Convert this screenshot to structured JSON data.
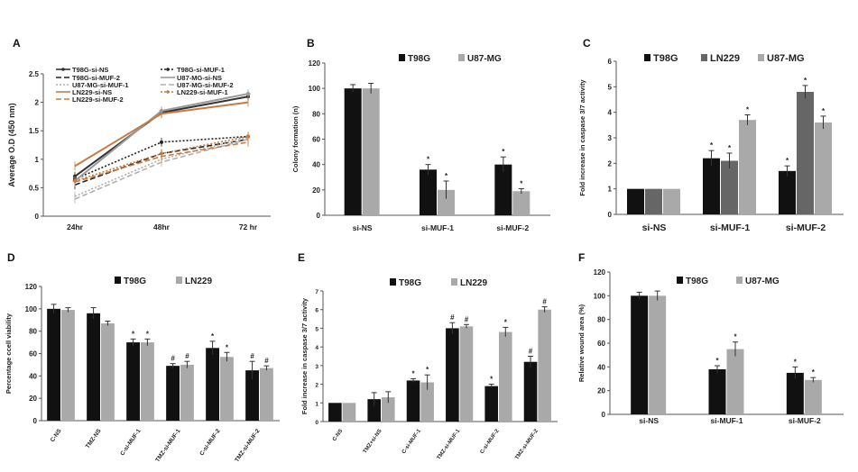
{
  "colors": {
    "black": "#111111",
    "gray": "#777777",
    "lightgray": "#a9a9a9",
    "orange": "#c97a3e",
    "darkgray": "#5a5a5a",
    "lightline": "#bdbdbd"
  },
  "chart_data": [
    {
      "panel": "A",
      "type": "line",
      "ylabel": "Average O.D (450 nm)",
      "x": [
        "24hr",
        "48hr",
        "72 hr"
      ],
      "ylim": [
        0,
        2.5
      ],
      "yticks": [
        "0",
        "0.5",
        "1",
        "1.5",
        "2",
        "2.5"
      ],
      "series": [
        {
          "name": "T98G-si-NS",
          "values": [
            0.7,
            1.82,
            2.1
          ],
          "color": "#333333",
          "dash": "",
          "marker": "circle"
        },
        {
          "name": "T98G-si-MUF-1",
          "values": [
            0.65,
            1.3,
            1.4
          ],
          "color": "#222222",
          "dash": "2,2",
          "marker": "circle"
        },
        {
          "name": "T98G-si-MUF-2",
          "values": [
            0.55,
            1.1,
            1.35
          ],
          "color": "#222222",
          "dash": "6,3",
          "marker": "none"
        },
        {
          "name": "U87-MG-si-NS",
          "values": [
            0.62,
            1.85,
            2.15
          ],
          "color": "#9a9a9a",
          "dash": "",
          "marker": "diamond"
        },
        {
          "name": "U87-MG-si-MUF-1",
          "values": [
            0.35,
            1.0,
            1.38
          ],
          "color": "#b0b0b0",
          "dash": "2,2",
          "marker": "none"
        },
        {
          "name": "U87-MG-si-MUF-2",
          "values": [
            0.3,
            0.95,
            1.35
          ],
          "color": "#b0b0b0",
          "dash": "6,3",
          "marker": "none"
        },
        {
          "name": "LN229-si-NS",
          "values": [
            0.88,
            1.8,
            2.0
          ],
          "color": "#c97a3e",
          "dash": "",
          "marker": "none"
        },
        {
          "name": "LN229-si-MUF-1",
          "values": [
            0.62,
            1.1,
            1.4
          ],
          "color": "#c97a3e",
          "dash": "2,2",
          "marker": "circle"
        },
        {
          "name": "LN229-si-MUF-2",
          "values": [
            0.6,
            1.05,
            1.3
          ],
          "color": "#c97a3e",
          "dash": "6,3",
          "marker": "none"
        }
      ]
    },
    {
      "panel": "B",
      "type": "bar",
      "ylabel": "Colony formation (n)",
      "categories": [
        "si-NS",
        "si-MUF-1",
        "si-MUF-2"
      ],
      "ylim": [
        0,
        120
      ],
      "yticks": [
        "0",
        "20",
        "40",
        "60",
        "80",
        "100",
        "120"
      ],
      "series": [
        {
          "name": "T98G",
          "color": "#111111",
          "values": [
            100,
            36,
            40
          ],
          "err": [
            3,
            4,
            6
          ],
          "marks": [
            "",
            "*",
            "*"
          ]
        },
        {
          "name": "U87-MG",
          "color": "#a9a9a9",
          "values": [
            100,
            20,
            19
          ],
          "err": [
            4,
            7,
            2
          ],
          "marks": [
            "",
            "*",
            "*"
          ]
        }
      ]
    },
    {
      "panel": "C",
      "type": "bar",
      "ylabel": "Fold increase in caspase 3/7 activity",
      "categories": [
        "si-NS",
        "si-MUF-1",
        "si-MUF-2"
      ],
      "ylim": [
        0,
        6
      ],
      "yticks": [
        "0",
        "1",
        "2",
        "3",
        "4",
        "5",
        "6"
      ],
      "series": [
        {
          "name": "T98G",
          "color": "#111111",
          "values": [
            1,
            2.2,
            1.7
          ],
          "err": [
            0,
            0.3,
            0.2
          ],
          "marks": [
            "",
            "*",
            "*"
          ]
        },
        {
          "name": "LN229",
          "color": "#666666",
          "values": [
            1,
            2.1,
            4.8
          ],
          "err": [
            0,
            0.3,
            0.25
          ],
          "marks": [
            "",
            "*",
            "*"
          ]
        },
        {
          "name": "U87-MG",
          "color": "#a9a9a9",
          "values": [
            1,
            3.7,
            3.6
          ],
          "err": [
            0,
            0.2,
            0.25
          ],
          "marks": [
            "",
            "*",
            "*"
          ]
        }
      ]
    },
    {
      "panel": "D",
      "type": "bar",
      "ylabel": "Percentage ccell viability",
      "categories": [
        "C-NS",
        "TMZ-NS",
        "C-si-MUF-1",
        "TMZ-si-MUF-1",
        "C-si-MUF-2",
        "TMZ-si-MUF-2"
      ],
      "ylim": [
        0,
        120
      ],
      "yticks": [
        "0",
        "20",
        "40",
        "60",
        "80",
        "100",
        "120"
      ],
      "series": [
        {
          "name": "T98G",
          "color": "#111111",
          "values": [
            100,
            96,
            70,
            49,
            65,
            45
          ],
          "err": [
            4,
            5,
            3,
            2,
            6,
            8
          ],
          "marks": [
            "",
            "",
            "*",
            "#",
            "*",
            "#"
          ]
        },
        {
          "name": "LN229",
          "color": "#a9a9a9",
          "values": [
            99,
            87,
            70,
            50,
            57,
            47
          ],
          "err": [
            2,
            2,
            3,
            3,
            4,
            2
          ],
          "marks": [
            "",
            "",
            "*",
            "#",
            "*",
            "#"
          ]
        }
      ]
    },
    {
      "panel": "E",
      "type": "bar",
      "ylabel": "Fold increase in caspase 3/7 activity",
      "categories": [
        "C-NS",
        "TMZ+si-NS",
        "C-si-MUF-1",
        "TMZ-si-MUF-1",
        "C-si-MUF-2",
        "TMZ-si-MUF-2"
      ],
      "ylim": [
        0,
        7
      ],
      "yticks": [
        "0",
        "1",
        "2",
        "3",
        "4",
        "5",
        "6",
        "7"
      ],
      "series": [
        {
          "name": "T98G",
          "color": "#111111",
          "values": [
            1,
            1.2,
            2.2,
            5.0,
            1.9,
            3.2
          ],
          "err": [
            0,
            0.35,
            0.1,
            0.3,
            0.1,
            0.3
          ],
          "marks": [
            "",
            "",
            "*",
            "#",
            "*",
            "#"
          ]
        },
        {
          "name": "LN229",
          "color": "#a9a9a9",
          "values": [
            1,
            1.3,
            2.1,
            5.1,
            4.8,
            6.0
          ],
          "err": [
            0,
            0.3,
            0.4,
            0.1,
            0.25,
            0.15
          ],
          "marks": [
            "",
            "",
            "*",
            "#",
            "*",
            "#"
          ]
        }
      ]
    },
    {
      "panel": "F",
      "type": "bar",
      "ylabel": "Relative wound area (%)",
      "categories": [
        "si-NS",
        "si-MUF-1",
        "si-MUF-2"
      ],
      "ylim": [
        0,
        120
      ],
      "yticks": [
        "0",
        "20",
        "40",
        "60",
        "80",
        "100",
        "120"
      ],
      "series": [
        {
          "name": "T98G",
          "color": "#111111",
          "values": [
            100,
            38,
            35
          ],
          "err": [
            3,
            3,
            5
          ],
          "marks": [
            "",
            "*",
            "*"
          ]
        },
        {
          "name": "U87-MG",
          "color": "#a9a9a9",
          "values": [
            100,
            55,
            29
          ],
          "err": [
            4,
            6,
            2
          ],
          "marks": [
            "",
            "*",
            "*"
          ]
        }
      ]
    }
  ]
}
